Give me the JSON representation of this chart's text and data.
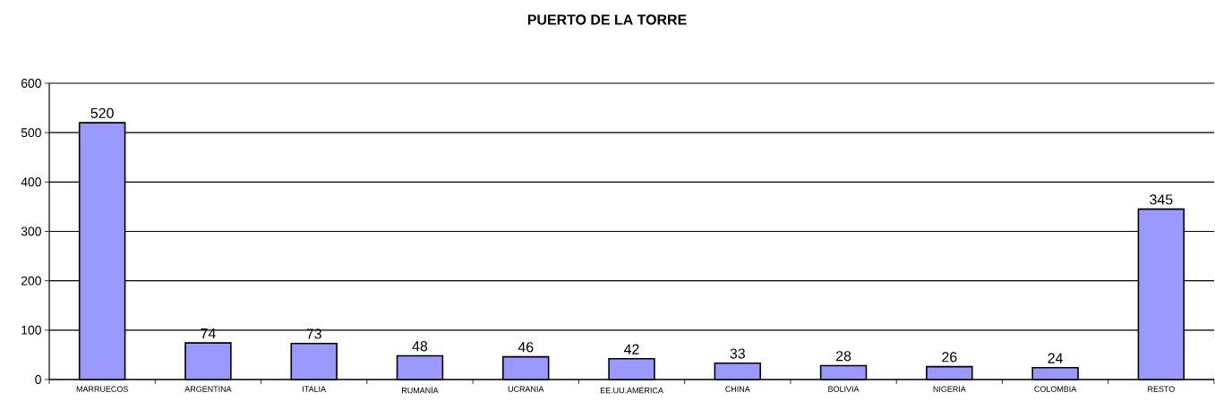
{
  "chart_data": {
    "type": "bar",
    "title": "PUERTO DE LA TORRE",
    "categories": [
      "MARRUECOS",
      "ARGENTINA",
      "ITALIA",
      "RUMANÍA",
      "UCRANIA",
      "EE.UU.AMÉRICA",
      "CHINA",
      "BOLIVIA",
      "NIGERIA",
      "COLOMBIA",
      "RESTO"
    ],
    "values": [
      520,
      74,
      73,
      48,
      46,
      42,
      33,
      28,
      26,
      24,
      345
    ],
    "color": "#9999ff",
    "ylim": [
      0,
      600
    ],
    "yticks": [
      0,
      100,
      200,
      300,
      400,
      500,
      600
    ],
    "grid": "y",
    "data_labels": true
  }
}
